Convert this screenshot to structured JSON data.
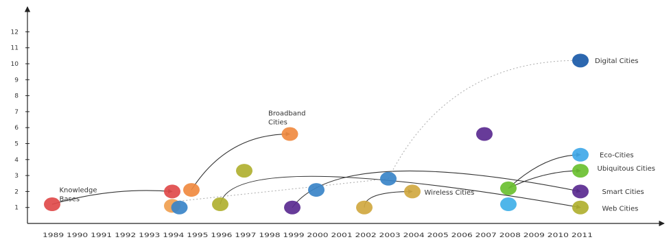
{
  "chart_data": {
    "type": "scatter",
    "title": "",
    "xlabel": "",
    "ylabel": "",
    "x_ticks": [
      1989,
      1990,
      1991,
      1992,
      1993,
      1994,
      1995,
      1996,
      1997,
      1998,
      1999,
      2000,
      2001,
      2002,
      2003,
      2004,
      2005,
      2006,
      2007,
      2008,
      2009,
      2010,
      2011
    ],
    "y_ticks": [
      1,
      2,
      3,
      4,
      5,
      6,
      7,
      8,
      9,
      10,
      11,
      12
    ],
    "ylim": [
      0,
      13.5
    ],
    "x_tick_text": "1989 1990 1991 1992 1993 1994 1995 1996 1997 1998 1999 2000 2001 2002 2003 2004 2005 2006 2007 2008 2009 2010 2011",
    "points": [
      {
        "x": 1989,
        "y": 1.2,
        "color": "#e04a4a"
      },
      {
        "x": 1994,
        "y": 2.0,
        "color": "#e04a4a"
      },
      {
        "x": 1994,
        "y": 1.1,
        "color": "#f0a050"
      },
      {
        "x": 1994.3,
        "y": 1.0,
        "color": "#3a84c8"
      },
      {
        "x": 1994.8,
        "y": 2.1,
        "color": "#f08a40"
      },
      {
        "x": 1996,
        "y": 1.2,
        "color": "#b0b030"
      },
      {
        "x": 1997,
        "y": 3.3,
        "color": "#b0b030"
      },
      {
        "x": 1998.9,
        "y": 5.6,
        "color": "#f08a40"
      },
      {
        "x": 1999,
        "y": 1.0,
        "color": "#5a2a90"
      },
      {
        "x": 2000,
        "y": 2.1,
        "color": "#3a84c8"
      },
      {
        "x": 2002,
        "y": 1.0,
        "color": "#d0a840"
      },
      {
        "x": 2003,
        "y": 2.8,
        "color": "#3a84c8"
      },
      {
        "x": 2004,
        "y": 2.0,
        "color": "#d0a840"
      },
      {
        "x": 2007,
        "y": 5.6,
        "color": "#5a2a90"
      },
      {
        "x": 2008,
        "y": 2.2,
        "color": "#6ac030"
      },
      {
        "x": 2008,
        "y": 1.2,
        "color": "#40b0e8"
      },
      {
        "x": 2011,
        "y": 10.2,
        "color": "#1a5aa8"
      },
      {
        "x": 2011,
        "y": 4.3,
        "color": "#40a8e8"
      },
      {
        "x": 2011,
        "y": 3.3,
        "color": "#6ac030"
      },
      {
        "x": 2011,
        "y": 2.0,
        "color": "#5a2a90"
      },
      {
        "x": 2011,
        "y": 1.0,
        "color": "#b0b030"
      }
    ],
    "links": [
      {
        "from": [
          1989,
          1.2
        ],
        "to": [
          1994,
          2.0
        ],
        "ctrl": [
          1991.5,
          2.3
        ],
        "dashed": false
      },
      {
        "from": [
          1994.8,
          2.1
        ],
        "to": [
          1998.9,
          5.6
        ],
        "ctrl": [
          1996.3,
          5.6
        ],
        "dashed": false
      },
      {
        "from": [
          1996,
          1.2
        ],
        "to": [
          2011,
          1.0
        ],
        "ctrl": [
          1996.5,
          4.8
        ],
        "dashed": false
      },
      {
        "from": [
          1999,
          1.0
        ],
        "to": [
          2011,
          2.0
        ],
        "ctrl": [
          2001,
          5.0
        ],
        "dashed": false
      },
      {
        "from": [
          2002,
          1.0
        ],
        "to": [
          2004,
          2.0
        ],
        "ctrl": [
          2002,
          2.0
        ],
        "dashed": false
      },
      {
        "from": [
          2008,
          2.2
        ],
        "to": [
          2011,
          4.3
        ],
        "ctrl": [
          2009.5,
          4.3
        ],
        "dashed": false
      },
      {
        "from": [
          2008,
          2.2
        ],
        "to": [
          2011,
          3.3
        ],
        "ctrl": [
          2009.5,
          3.3
        ],
        "dashed": false
      },
      {
        "from": [
          1994.3,
          1.4
        ],
        "to": [
          2003,
          2.8
        ],
        "ctrl": [
          1998,
          2.0
        ],
        "dashed": true
      },
      {
        "from": [
          2003,
          2.8
        ],
        "to": [
          2011,
          10.2
        ],
        "ctrl": [
          2005.5,
          10.3
        ],
        "dashed": true
      }
    ],
    "annotations": [
      {
        "text": "Knowledge",
        "x": 1989.3,
        "y": 2.1
      },
      {
        "text": "Bases",
        "x": 1989.3,
        "y": 1.55
      },
      {
        "text": "Broadband",
        "x": 1998.0,
        "y": 6.9
      },
      {
        "text": "Cities",
        "x": 1998.0,
        "y": 6.35
      },
      {
        "text": "Wireless Cities",
        "x": 2004.5,
        "y": 1.95
      },
      {
        "text": "Digital Cities",
        "x": 2011.6,
        "y": 10.2
      },
      {
        "text": "Eco-Cities",
        "x": 2011.8,
        "y": 4.3
      },
      {
        "text": "Ubiquitous Cities",
        "x": 2011.7,
        "y": 3.45
      },
      {
        "text": "Smart Cities",
        "x": 2011.9,
        "y": 2.0
      },
      {
        "text": "Web Cities",
        "x": 2011.9,
        "y": 0.95
      }
    ]
  }
}
